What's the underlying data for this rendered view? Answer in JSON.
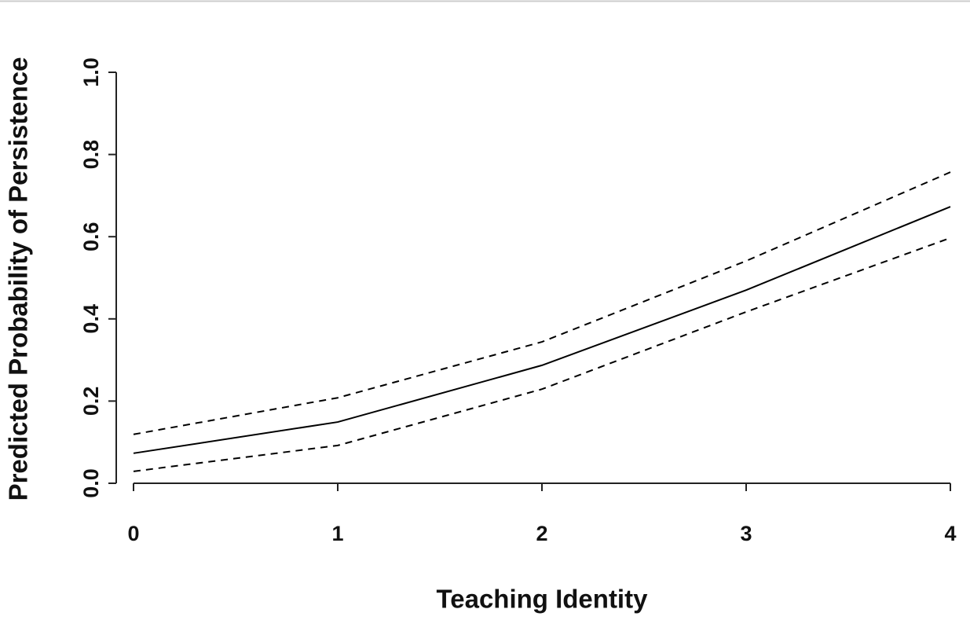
{
  "chart_data": {
    "type": "line",
    "x_label": "Teaching Identity",
    "y_label": "Predicted Probability of Persistence",
    "x": [
      0,
      1,
      2,
      3,
      4
    ],
    "series": [
      {
        "color": "#000000",
        "dashed": false,
        "values": [
          0.073,
          0.149,
          0.287,
          0.47,
          0.673
        ]
      },
      {
        "color": "#000000",
        "dashed": true,
        "values": [
          0.119,
          0.208,
          0.344,
          0.541,
          0.757
        ]
      },
      {
        "color": "#000000",
        "dashed": true,
        "values": [
          0.029,
          0.092,
          0.229,
          0.417,
          0.597
        ]
      }
    ],
    "xlim": [
      0,
      4
    ],
    "xticks": [
      0,
      1,
      2,
      3,
      4
    ],
    "ylim": [
      0,
      1
    ],
    "yticks": [
      {
        "value": 0,
        "label": "0.0"
      },
      {
        "value": 0.2,
        "label": "0.2"
      },
      {
        "value": 0.4,
        "label": "0.4"
      },
      {
        "value": 0.6,
        "label": "0.6"
      },
      {
        "value": 0.8,
        "label": "0.8"
      },
      {
        "value": 1,
        "label": "1.0"
      }
    ],
    "grid": false
  }
}
